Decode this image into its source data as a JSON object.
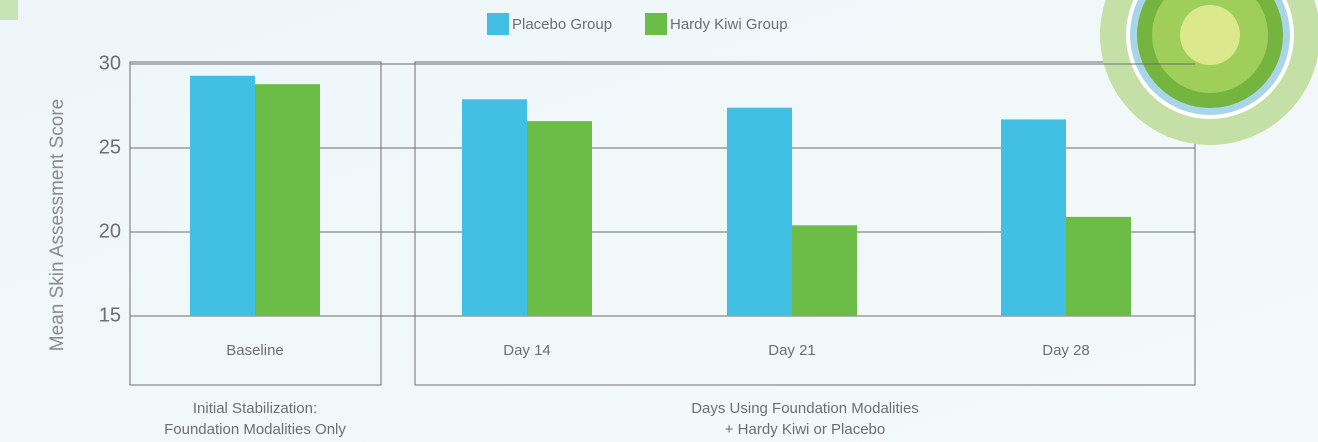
{
  "chart_data": {
    "type": "bar",
    "y_label": "Mean Skin Assessment Score",
    "categories": [
      "Baseline",
      "Day 14",
      "Day 21",
      "Day 28"
    ],
    "series": [
      {
        "name": "Placebo Group",
        "color": "#41c0e3",
        "values": [
          29.3,
          27.9,
          27.4,
          26.7
        ]
      },
      {
        "name": "Hardy Kiwi Group",
        "color": "#6bbd48",
        "values": [
          28.8,
          26.6,
          20.4,
          20.9
        ]
      }
    ],
    "groups": [
      {
        "lines": [
          "Initial Stabilization:",
          "Foundation Modalities Only"
        ]
      },
      {
        "lines": [
          "Days Using Foundation Modalities",
          "+ Hardy Kiwi or Placebo"
        ]
      }
    ],
    "ylim": [
      15,
      30
    ],
    "yticks": [
      15,
      20,
      25,
      30
    ],
    "grid": true
  }
}
